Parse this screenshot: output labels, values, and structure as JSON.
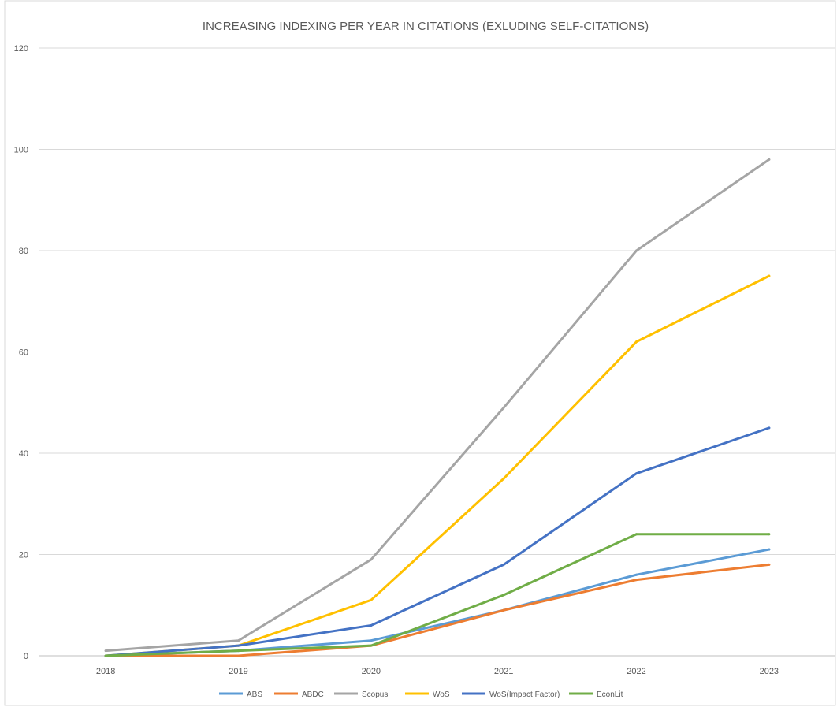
{
  "chart_data": {
    "type": "line",
    "title": "INCREASING INDEXING PER YEAR IN CITATIONS (EXLUDING SELF-CITATIONS)",
    "xlabel": "",
    "ylabel": "",
    "categories": [
      "2018",
      "2019",
      "2020",
      "2021",
      "2022",
      "2023"
    ],
    "ylim": [
      0,
      120
    ],
    "yticks": [
      0,
      20,
      40,
      60,
      80,
      100,
      120
    ],
    "grid": true,
    "legend_position": "bottom",
    "series": [
      {
        "name": "ABS",
        "color": "#5b9bd5",
        "values": [
          0,
          1,
          3,
          9,
          16,
          21
        ]
      },
      {
        "name": "ABDC",
        "color": "#ed7d31",
        "values": [
          0,
          0,
          2,
          9,
          15,
          18
        ]
      },
      {
        "name": "Scopus",
        "color": "#a5a5a5",
        "values": [
          1,
          3,
          19,
          49,
          80,
          98
        ]
      },
      {
        "name": "WoS",
        "color": "#ffc000",
        "values": [
          0,
          2,
          11,
          35,
          62,
          75
        ]
      },
      {
        "name": "WoS(Impact Factor)",
        "color": "#4472c4",
        "values": [
          0,
          2,
          6,
          18,
          36,
          45
        ]
      },
      {
        "name": "EconLit",
        "color": "#70ad47",
        "values": [
          0,
          1,
          2,
          12,
          24,
          24
        ]
      }
    ]
  }
}
